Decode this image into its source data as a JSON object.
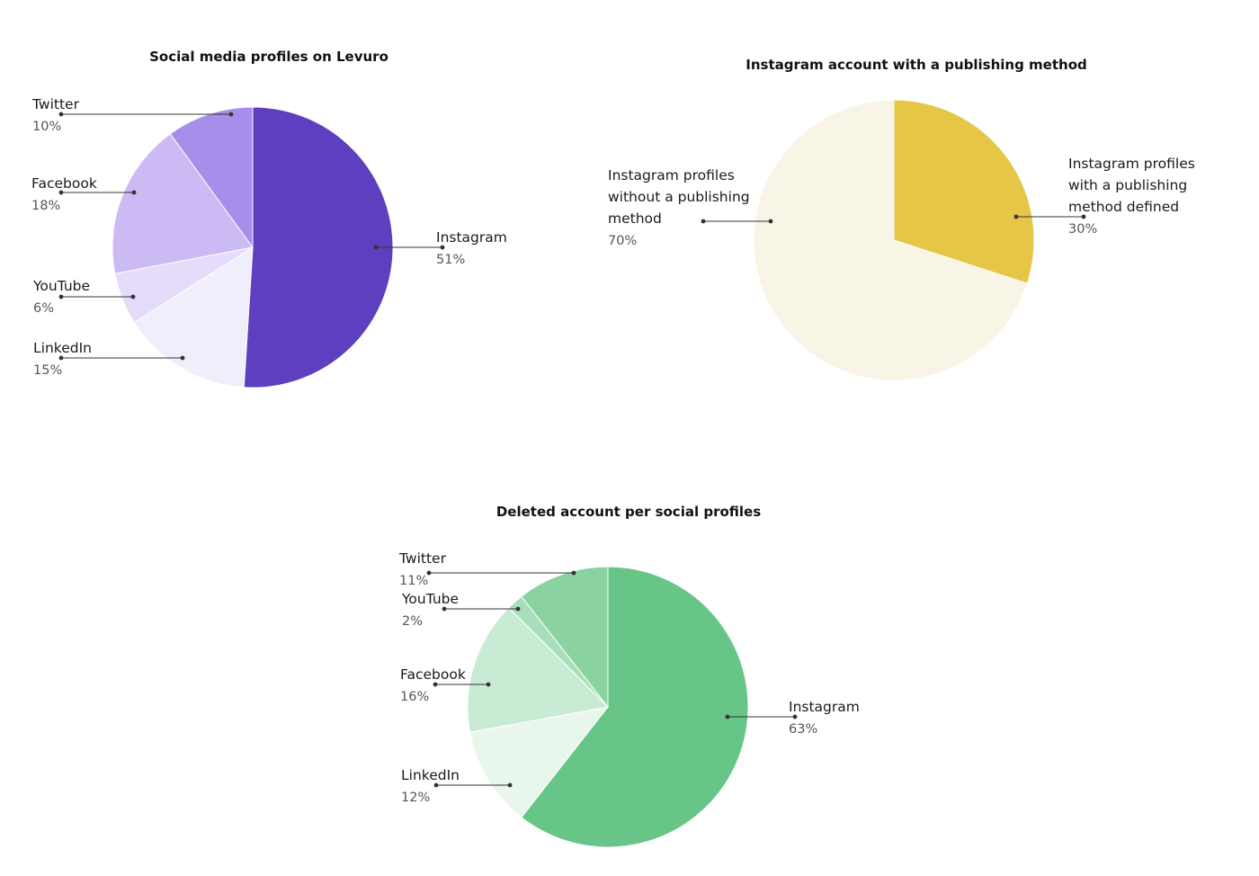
{
  "chart_data": [
    {
      "type": "pie",
      "title": "Social media profiles on Levuro",
      "slices": [
        {
          "label": "Instagram",
          "value": 51,
          "value_label": "51%",
          "color": "#5d3fbf"
        },
        {
          "label": "LinkedIn",
          "value": 15,
          "value_label": "15%",
          "color": "#f1eefc"
        },
        {
          "label": "YouTube",
          "value": 6,
          "value_label": "6%",
          "color": "#e4dcfa"
        },
        {
          "label": "Facebook",
          "value": 18,
          "value_label": "18%",
          "color": "#cbbaf4"
        },
        {
          "label": "Twitter",
          "value": 10,
          "value_label": "10%",
          "color": "#a78eea"
        }
      ]
    },
    {
      "type": "pie",
      "title": "Instagram account with a publishing method",
      "slices": [
        {
          "label": "Instagram profiles with a publishing method defined",
          "label_lines": [
            "Instagram profiles",
            "with a publishing",
            "method defined"
          ],
          "value": 30,
          "value_label": "30%",
          "color": "#e5c647"
        },
        {
          "label": "Instagram profiles without a publishing method",
          "label_lines": [
            "Instagram profiles",
            "without a publishing",
            "method"
          ],
          "value": 70,
          "value_label": "70%",
          "color": "#f8f5e6"
        }
      ]
    },
    {
      "type": "pie",
      "title": "Deleted account per social profiles",
      "slices": [
        {
          "label": "Instagram",
          "value": 63,
          "value_label": "63%",
          "color": "#67c587"
        },
        {
          "label": "LinkedIn",
          "value": 12,
          "value_label": "12%",
          "color": "#e9f6ec"
        },
        {
          "label": "Facebook",
          "value": 16,
          "value_label": "16%",
          "color": "#c9ebd4"
        },
        {
          "label": "YouTube",
          "value": 2,
          "value_label": "2%",
          "color": "#a8dfba"
        },
        {
          "label": "Twitter",
          "value": 11,
          "value_label": "11%",
          "color": "#8ad3a1"
        }
      ]
    }
  ]
}
